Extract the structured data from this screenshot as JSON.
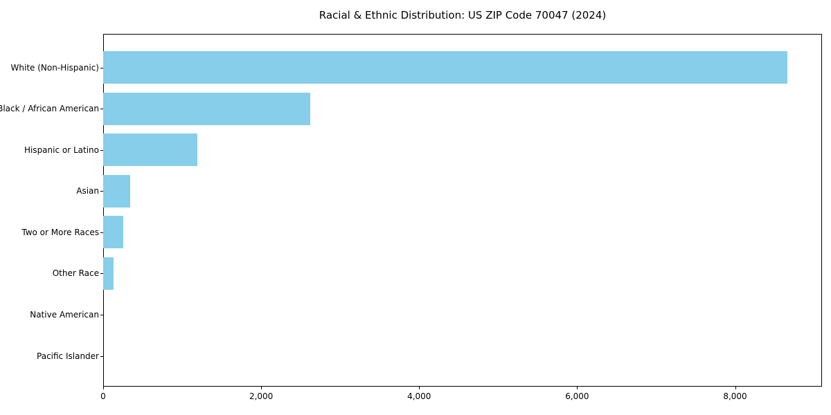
{
  "chart_data": {
    "type": "bar",
    "orientation": "horizontal",
    "title": "Racial & Ethnic Distribution: US ZIP Code 70047 (2024)",
    "categories": [
      "White (Non-Hispanic)",
      "Black / African American",
      "Hispanic or Latino",
      "Asian",
      "Two or More Races",
      "Other Race",
      "Native American",
      "Pacific Islander"
    ],
    "values": [
      8660,
      2620,
      1190,
      340,
      255,
      130,
      0,
      0
    ],
    "xlim": [
      0,
      9100
    ],
    "xticks": [
      0,
      2000,
      4000,
      6000,
      8000
    ],
    "xtick_labels": [
      "0",
      "2,000",
      "4,000",
      "6,000",
      "8,000"
    ],
    "xlabel": "",
    "ylabel": "",
    "grid": false,
    "legend": null,
    "bar_color": "#87CEEB",
    "spine_color": "#000000",
    "background_color": "#ffffff"
  }
}
